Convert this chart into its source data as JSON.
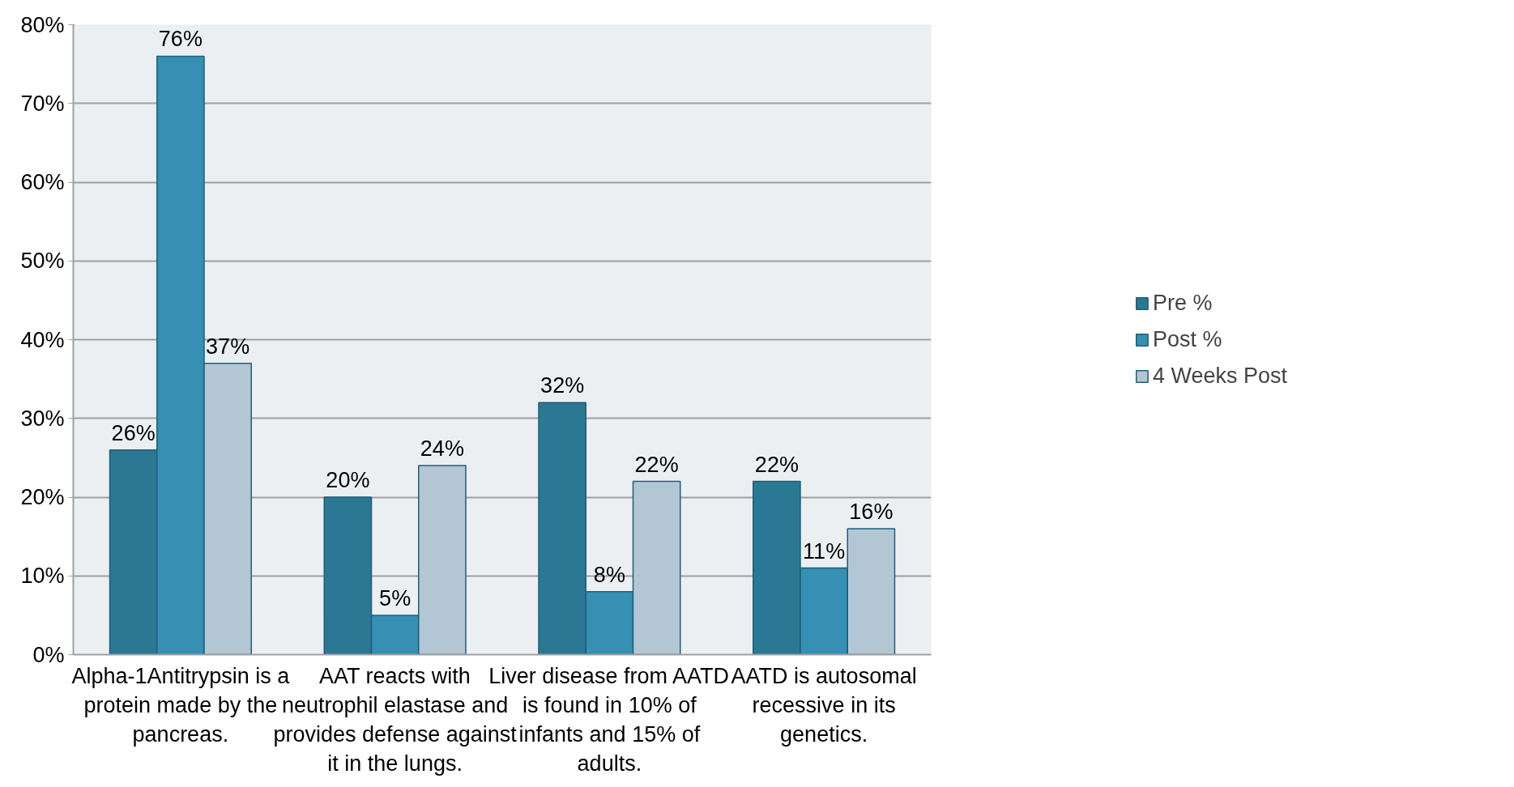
{
  "chart_data": {
    "type": "bar",
    "categories": [
      "Alpha-1Antitrypsin is a protein made by the pancreas.",
      "AAT reacts with neutrophil elastase and provides defense against it in the lungs.",
      "Liver disease from AATD is found in 10% of infants and 15% of adults.",
      "AATD is autosomal recessive in its genetics."
    ],
    "series": [
      {
        "name": "Pre %",
        "color": "#2a7894",
        "values": [
          26,
          20,
          32,
          22
        ],
        "value_labels": [
          "26%",
          "20%",
          "32%",
          "22%"
        ]
      },
      {
        "name": "Post %",
        "color": "#3590b3",
        "values": [
          76,
          5,
          8,
          11
        ],
        "value_labels": [
          "76%",
          "5%",
          "8%",
          "11%"
        ]
      },
      {
        "name": "4 Weeks Post",
        "color": "#b3c6d4",
        "values": [
          37,
          24,
          22,
          16
        ],
        "value_labels": [
          "37%",
          "24%",
          "22%",
          "16%"
        ]
      }
    ],
    "ylim": [
      0,
      80
    ],
    "yticks": [
      {
        "value": 0,
        "label": "0%"
      },
      {
        "value": 10,
        "label": "10%"
      },
      {
        "value": 20,
        "label": "20%"
      },
      {
        "value": 30,
        "label": "30%"
      },
      {
        "value": 40,
        "label": "40%"
      },
      {
        "value": 50,
        "label": "50%"
      },
      {
        "value": 60,
        "label": "60%"
      },
      {
        "value": 70,
        "label": "70%"
      },
      {
        "value": 80,
        "label": "80%"
      }
    ],
    "grid": "y",
    "legend": "right"
  }
}
